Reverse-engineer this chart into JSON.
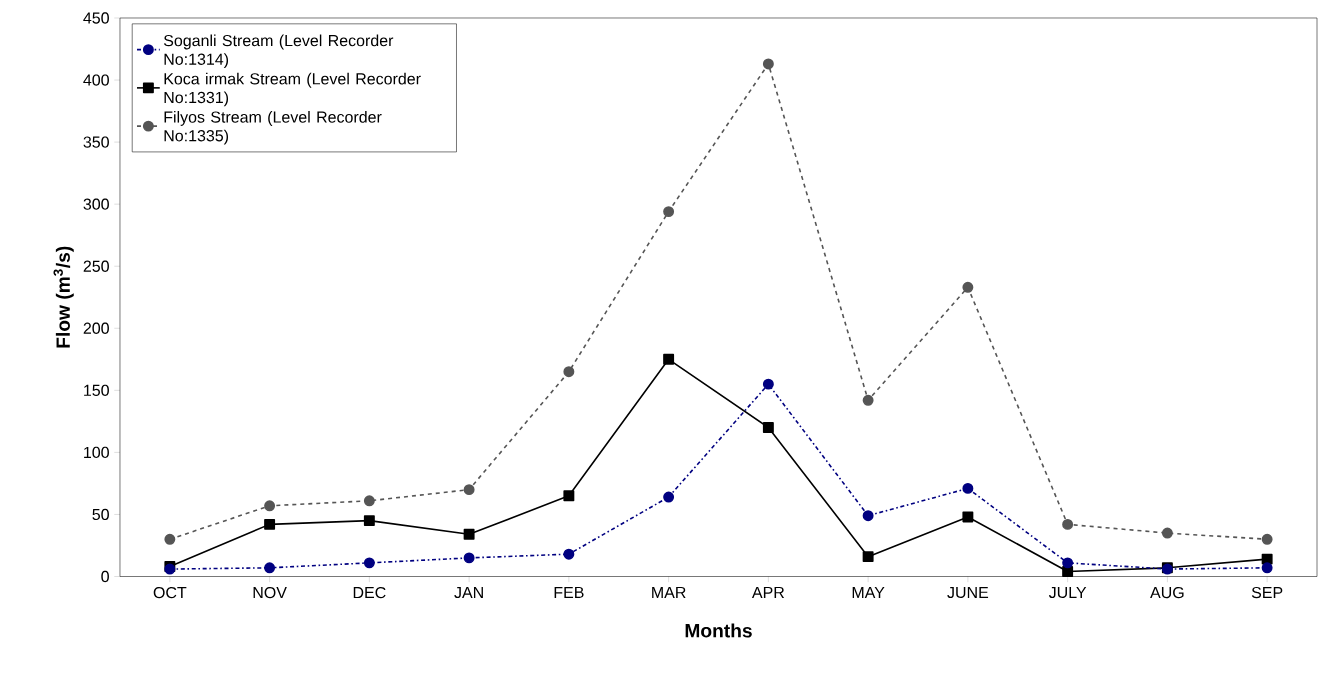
{
  "chart_data": {
    "type": "line",
    "xlabel": "Months",
    "ylabel": "Flow (m$^{3}$/s)",
    "categories": [
      "OCT",
      "NOV",
      "DEC",
      "JAN",
      "FEB",
      "MAR",
      "APR",
      "MAY",
      "JUNE",
      "JULY",
      "AUG",
      "SEP"
    ],
    "series": [
      {
        "name": "Soganli Stream (Level Recorder No:1314)",
        "color": "#000080",
        "marker": "circle",
        "line_style": "dashdotted",
        "values": [
          6,
          7,
          11,
          15,
          18,
          64,
          155,
          49,
          71,
          11,
          6,
          7
        ]
      },
      {
        "name": "Koca irmak Stream (Level Recorder No:1331)",
        "color": "#000000",
        "marker": "square",
        "line_style": "solid",
        "values": [
          8,
          42,
          45,
          34,
          65,
          175,
          120,
          16,
          48,
          4,
          7,
          14
        ]
      },
      {
        "name": "Filyos Stream (Level Recorder No:1335)",
        "color": "#555555",
        "marker": "circle",
        "line_style": "dashed",
        "values": [
          30,
          57,
          61,
          70,
          165,
          294,
          413,
          142,
          233,
          42,
          35,
          30
        ]
      }
    ],
    "ylim": [
      0,
      450
    ],
    "yticks": [
      0,
      50,
      100,
      150,
      200,
      250,
      300,
      350,
      400,
      450
    ],
    "grid": false,
    "legend": "top left"
  }
}
